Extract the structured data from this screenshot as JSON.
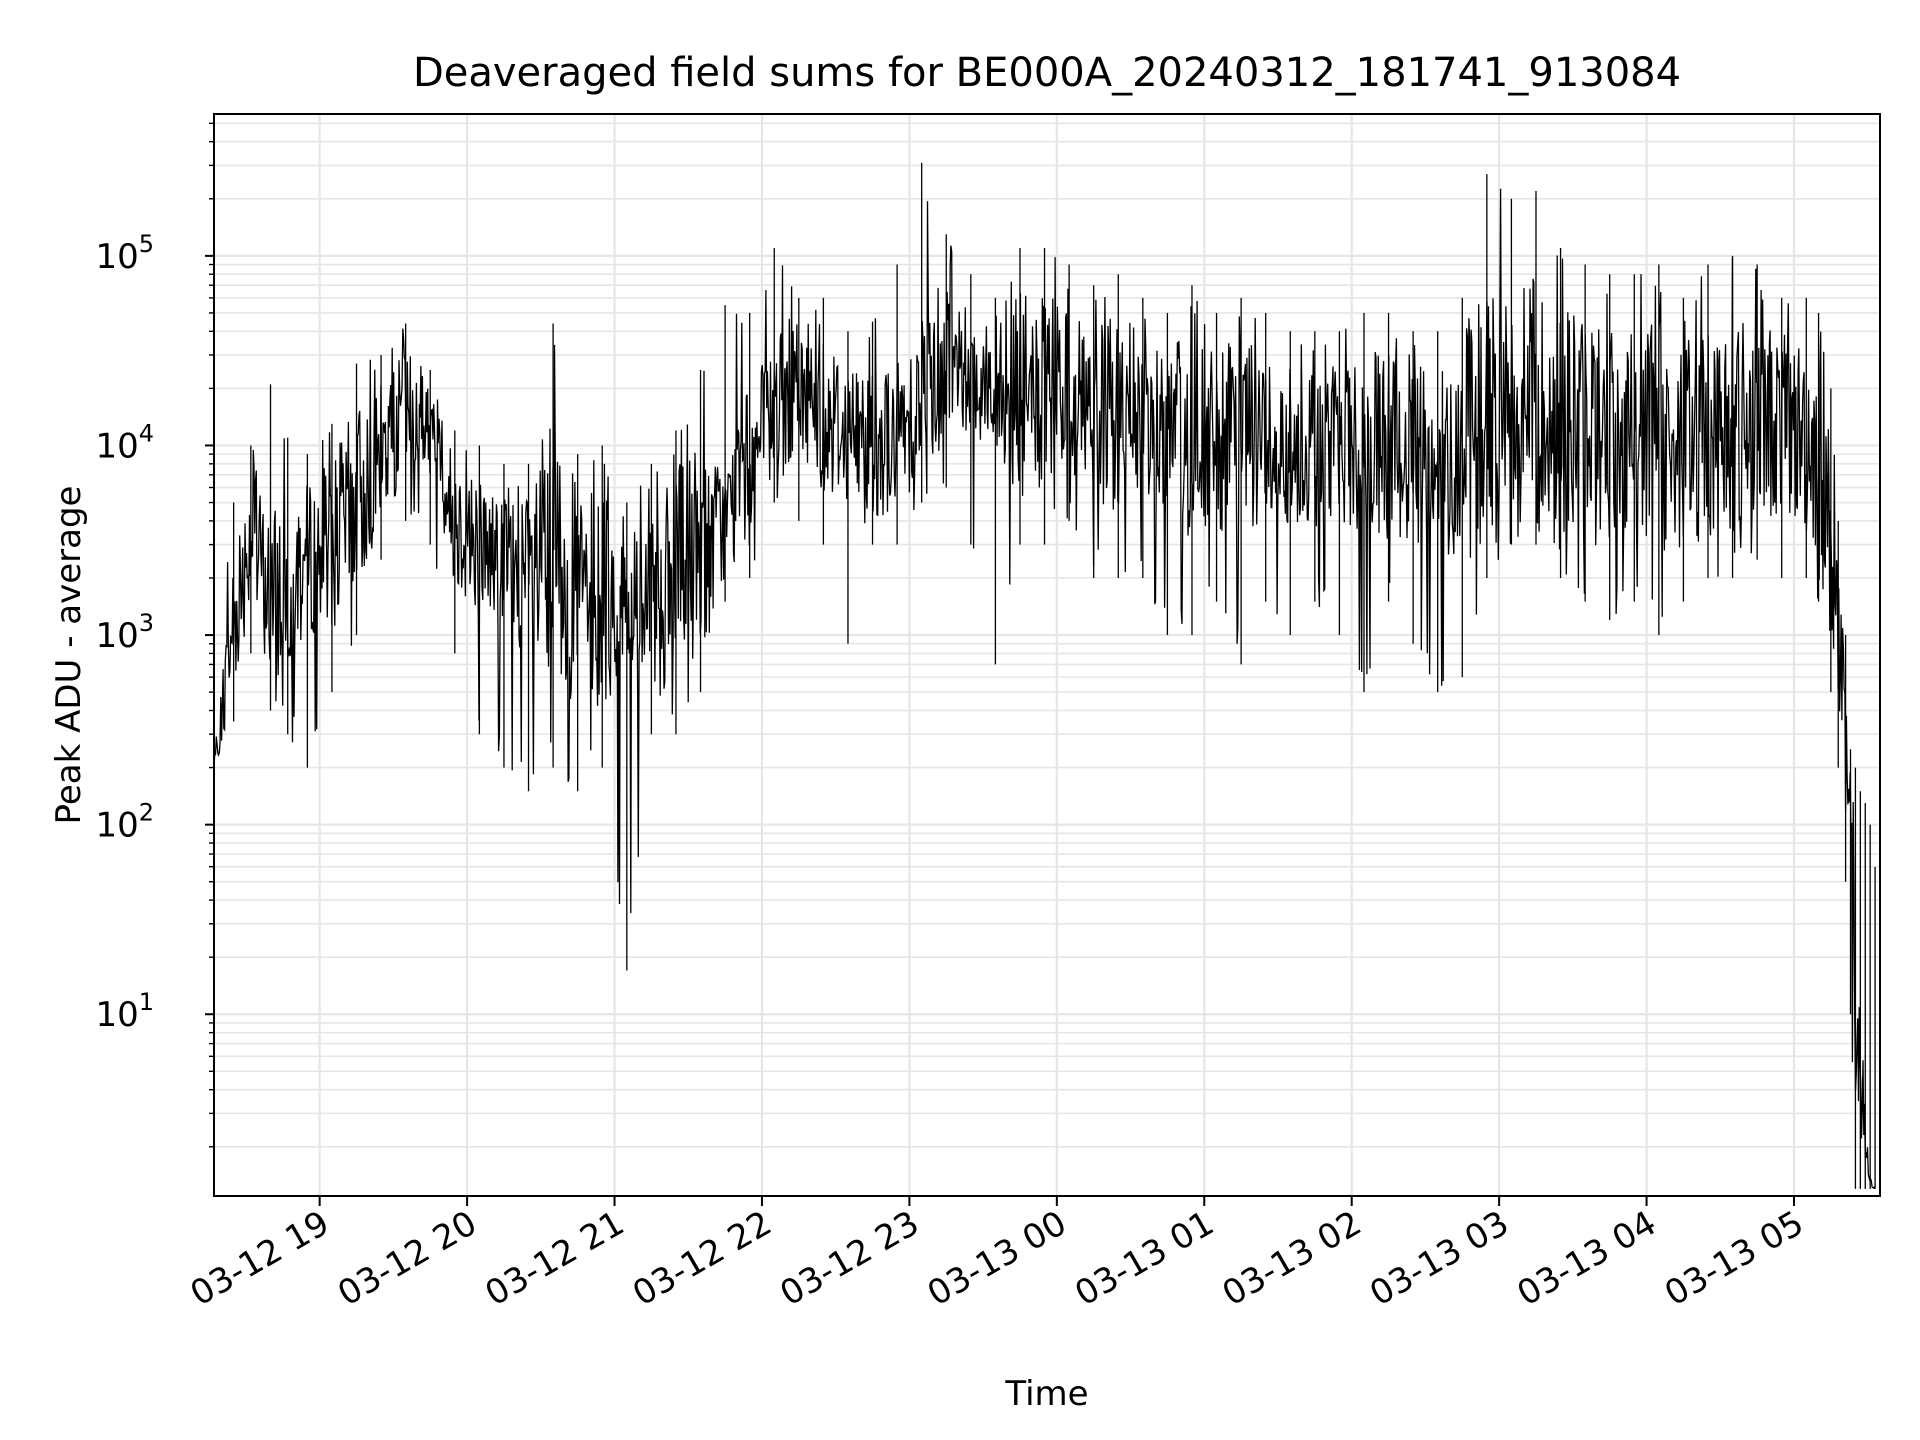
{
  "chart_data": {
    "type": "line",
    "title": "Deaveraged field sums for BE000A_20240312_181741_913084",
    "xlabel": "Time",
    "ylabel": "Peak ADU - average",
    "x_axis": {
      "kind": "datetime",
      "range": [
        "2024-03-12 18:17",
        "2024-03-13 05:35"
      ],
      "ticks": [
        "03-12 19",
        "03-12 20",
        "03-12 21",
        "03-12 22",
        "03-12 23",
        "03-13 00",
        "03-13 01",
        "03-13 02",
        "03-13 03",
        "03-13 04",
        "03-13 05"
      ],
      "tick_rotation_deg": 30
    },
    "y_axis": {
      "scale": "log",
      "ylim": [
        1.1,
        560000
      ],
      "ticks": [
        {
          "value": 10,
          "base": "10",
          "exp": "1"
        },
        {
          "value": 100,
          "base": "10",
          "exp": "2"
        },
        {
          "value": 1000,
          "base": "10",
          "exp": "3"
        },
        {
          "value": 10000,
          "base": "10",
          "exp": "4"
        },
        {
          "value": 100000,
          "base": "10",
          "exp": "5"
        }
      ]
    },
    "grid": true,
    "line_color": "#000000",
    "grid_color": "#e6e6e6",
    "series": [
      {
        "x": [
          "2024-03-12 18:17",
          "2024-03-12 18:25",
          "2024-03-12 18:32",
          "2024-03-12 18:40",
          "2024-03-12 18:47",
          "2024-03-12 18:55",
          "2024-03-12 19:05",
          "2024-03-12 19:15",
          "2024-03-12 19:25",
          "2024-03-12 19:35",
          "2024-03-12 19:45",
          "2024-03-12 19:55",
          "2024-03-12 20:05",
          "2024-03-12 20:15",
          "2024-03-12 20:25",
          "2024-03-12 20:35",
          "2024-03-12 20:45",
          "2024-03-12 20:55",
          "2024-03-12 21:05",
          "2024-03-12 21:15",
          "2024-03-12 21:25",
          "2024-03-12 21:35",
          "2024-03-12 21:45",
          "2024-03-12 21:55",
          "2024-03-12 22:05",
          "2024-03-12 22:15",
          "2024-03-12 22:25",
          "2024-03-12 22:35",
          "2024-03-12 22:45",
          "2024-03-12 22:55",
          "2024-03-12 23:05",
          "2024-03-12 23:15",
          "2024-03-12 23:25",
          "2024-03-12 23:35",
          "2024-03-12 23:45",
          "2024-03-12 23:55",
          "2024-03-13 00:05",
          "2024-03-13 00:15",
          "2024-03-13 00:25",
          "2024-03-13 00:35",
          "2024-03-13 00:45",
          "2024-03-13 00:55",
          "2024-03-13 01:05",
          "2024-03-13 01:15",
          "2024-03-13 01:25",
          "2024-03-13 01:35",
          "2024-03-13 01:45",
          "2024-03-13 01:55",
          "2024-03-13 02:05",
          "2024-03-13 02:15",
          "2024-03-13 02:25",
          "2024-03-13 02:35",
          "2024-03-13 02:45",
          "2024-03-13 02:55",
          "2024-03-13 03:05",
          "2024-03-13 03:15",
          "2024-03-13 03:25",
          "2024-03-13 03:35",
          "2024-03-13 03:45",
          "2024-03-13 03:55",
          "2024-03-13 04:05",
          "2024-03-13 04:15",
          "2024-03-13 04:25",
          "2024-03-13 04:35",
          "2024-03-13 04:45",
          "2024-03-13 04:55",
          "2024-03-13 05:05",
          "2024-03-13 05:10",
          "2024-03-13 05:15",
          "2024-03-13 05:18",
          "2024-03-13 05:21",
          "2024-03-13 05:23",
          "2024-03-13 05:25",
          "2024-03-13 05:27",
          "2024-03-13 05:29",
          "2024-03-13 05:31",
          "2024-03-13 05:33"
        ],
        "values": [
          200,
          1200,
          3500,
          1500,
          2000,
          2500,
          3000,
          5000,
          9000,
          15000,
          12000,
          4000,
          3000,
          2500,
          2000,
          2200,
          1800,
          1500,
          1400,
          1300,
          2000,
          3000,
          4000,
          8000,
          15000,
          20000,
          15000,
          12000,
          10000,
          11000,
          20000,
          30000,
          25000,
          20000,
          18000,
          17000,
          20000,
          15000,
          14000,
          15000,
          12000,
          11000,
          10000,
          12000,
          11000,
          10000,
          10000,
          11000,
          9000,
          10000,
          9000,
          8000,
          10000,
          15000,
          18000,
          20000,
          15000,
          12000,
          12000,
          13000,
          11000,
          10000,
          12000,
          13000,
          14000,
          13000,
          11000,
          9000,
          3000,
          1000,
          200,
          100,
          20,
          5,
          2,
          1.3,
          1.2
        ],
        "max": [
          700,
          5000,
          10000,
          21000,
          11000,
          9000,
          13000,
          27000,
          30000,
          44000,
          25000,
          12000,
          10000,
          8000,
          8000,
          44000,
          9000,
          10000,
          5000,
          8000,
          12000,
          25000,
          55000,
          50000,
          110000,
          60000,
          60000,
          40000,
          45000,
          90000,
          310000,
          130000,
          80000,
          60000,
          110000,
          110000,
          90000,
          70000,
          80000,
          60000,
          50000,
          70000,
          50000,
          60000,
          50000,
          40000,
          40000,
          40000,
          50000,
          50000,
          40000,
          40000,
          60000,
          270000,
          200000,
          220000,
          110000,
          90000,
          80000,
          80000,
          90000,
          60000,
          90000,
          100000,
          90000,
          60000,
          60000,
          50000,
          20000,
          4000,
          1000,
          250,
          200,
          150,
          130,
          100,
          60
        ],
        "min": [
          170,
          350,
          800,
          400,
          300,
          200,
          500,
          1000,
          2500,
          4000,
          3000,
          800,
          300,
          200,
          150,
          200,
          150,
          200,
          17,
          300,
          300,
          500,
          1500,
          2000,
          5000,
          4000,
          3000,
          900,
          3000,
          3000,
          5000,
          6000,
          3000,
          700,
          3000,
          3000,
          4000,
          2000,
          2000,
          2000,
          1000,
          1000,
          1500,
          700,
          1500,
          1000,
          1500,
          1000,
          500,
          1500,
          900,
          500,
          600,
          2000,
          3000,
          3000,
          2000,
          1500,
          1200,
          1500,
          1000,
          1500,
          2000,
          2000,
          2500,
          2000,
          2000,
          1500,
          500,
          200,
          50,
          10,
          1.2,
          1.2,
          1.2,
          1.2,
          1.2
        ]
      }
    ]
  }
}
